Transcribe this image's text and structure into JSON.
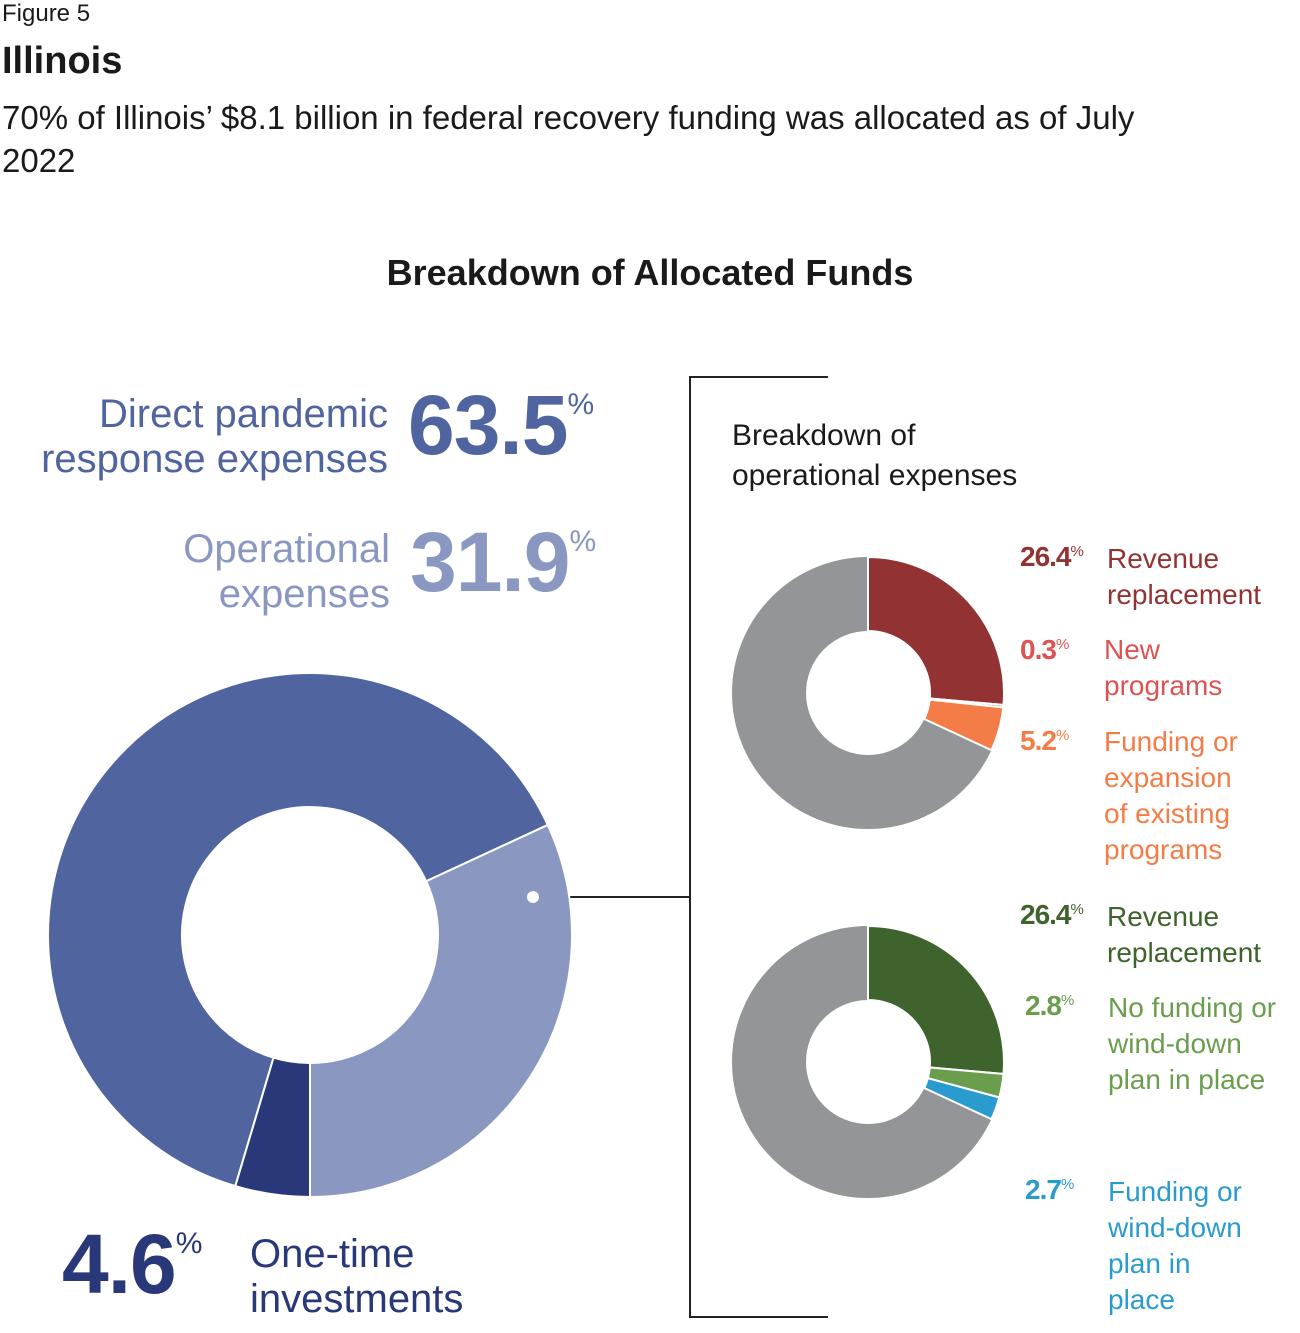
{
  "figure_label": "Figure 5",
  "title": "Illinois",
  "subtitle": "70% of Illinois’ $8.1 billion in federal recovery funding was allocated as of July 2022",
  "chart_data": [
    {
      "type": "donut",
      "title": "Breakdown of Allocated Funds",
      "unit": "%",
      "categories": [
        "Direct pandemic response expenses",
        "Operational expenses",
        "One-time investments"
      ],
      "values": [
        63.5,
        31.9,
        4.6
      ],
      "colors": [
        "#50659f",
        "#8a98c1",
        "#283878"
      ]
    },
    {
      "type": "donut",
      "title": "Breakdown of operational expenses",
      "unit": "%",
      "categories": [
        "Revenue replacement",
        "New programs",
        "Funding or expansion of existing programs"
      ],
      "values": [
        26.4,
        0.3,
        5.2
      ],
      "colors": [
        "#923232",
        "#dd5353",
        "#f47c47"
      ],
      "remainder_color": "#939598"
    },
    {
      "type": "donut",
      "unit": "%",
      "categories": [
        "Revenue replacement",
        "No funding or wind-down plan in place",
        "Funding or wind-down plan in place"
      ],
      "values": [
        26.4,
        2.8,
        2.7
      ],
      "colors": [
        "#3f632c",
        "#6a9e4c",
        "#2a9bcf"
      ],
      "remainder_color": "#939598"
    }
  ]
}
